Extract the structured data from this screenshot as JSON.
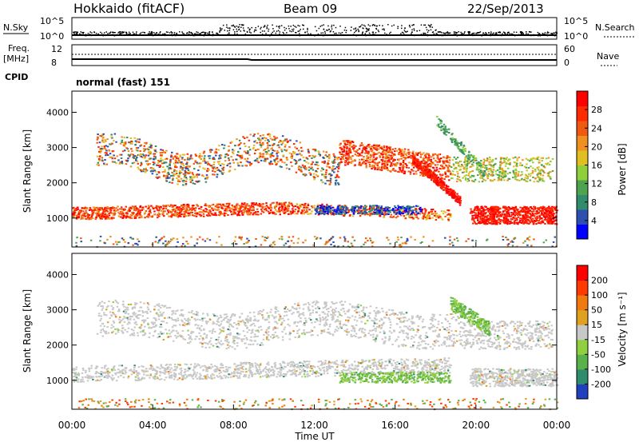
{
  "header": {
    "station": "Hokkaido (fitACF)",
    "beam": "Beam 09",
    "date": "22/Sep/2013"
  },
  "status": {
    "nsky_label": "N.Sky",
    "nsky_ticks": [
      "10^5",
      "10^0"
    ],
    "nsearch_label": "N.Search",
    "nsearch_ticks": [
      "10^5",
      "10^0"
    ],
    "freq_label": "Freq.",
    "freq_unit": "[MHz]",
    "freq_ticks": [
      "12",
      "8"
    ],
    "nave_label": "Nave",
    "nave_ticks": [
      "60",
      "0"
    ],
    "cpid_label": "CPID",
    "cpid_value": "normal (fast) 151"
  },
  "colors": {
    "power": [
      "#0000ff",
      "#2f4fb0",
      "#2f8c6c",
      "#4ea34e",
      "#8fcf3a",
      "#e0c020",
      "#f09020",
      "#f05a10",
      "#ff2a00",
      "#ff0000"
    ],
    "velocity": [
      "#2040c0",
      "#2f8c6c",
      "#5ab04a",
      "#90d040",
      "#c8c8c8",
      "#e0a020",
      "#f07a10",
      "#ff3a00",
      "#ff0000"
    ]
  },
  "chart_data": [
    {
      "type": "heatmap",
      "panel": "power",
      "ylabel": "Slant Range [km]",
      "yticks": [
        "1000",
        "2000",
        "3000",
        "4000"
      ],
      "xticks": [
        "00:00",
        "04:00",
        "08:00",
        "12:00",
        "16:00",
        "20:00",
        "00:00"
      ],
      "colorbar_label": "Power [dB]",
      "colorbar_ticks": [
        "4",
        "8",
        "12",
        "16",
        "20",
        "24",
        "28"
      ],
      "ylim": [
        180,
        4600
      ]
    },
    {
      "type": "heatmap",
      "panel": "velocity",
      "ylabel": "Slant Range [km]",
      "yticks": [
        "1000",
        "2000",
        "3000",
        "4000"
      ],
      "xticks": [
        "00:00",
        "04:00",
        "08:00",
        "12:00",
        "16:00",
        "20:00",
        "00:00"
      ],
      "xlabel": "Time UT",
      "colorbar_label": "Velocity [m s⁻¹]",
      "colorbar_ticks": [
        "200",
        "100",
        "50",
        "15",
        "-15",
        "-50",
        "-100",
        "-200"
      ],
      "ylim": [
        180,
        4600
      ]
    }
  ]
}
